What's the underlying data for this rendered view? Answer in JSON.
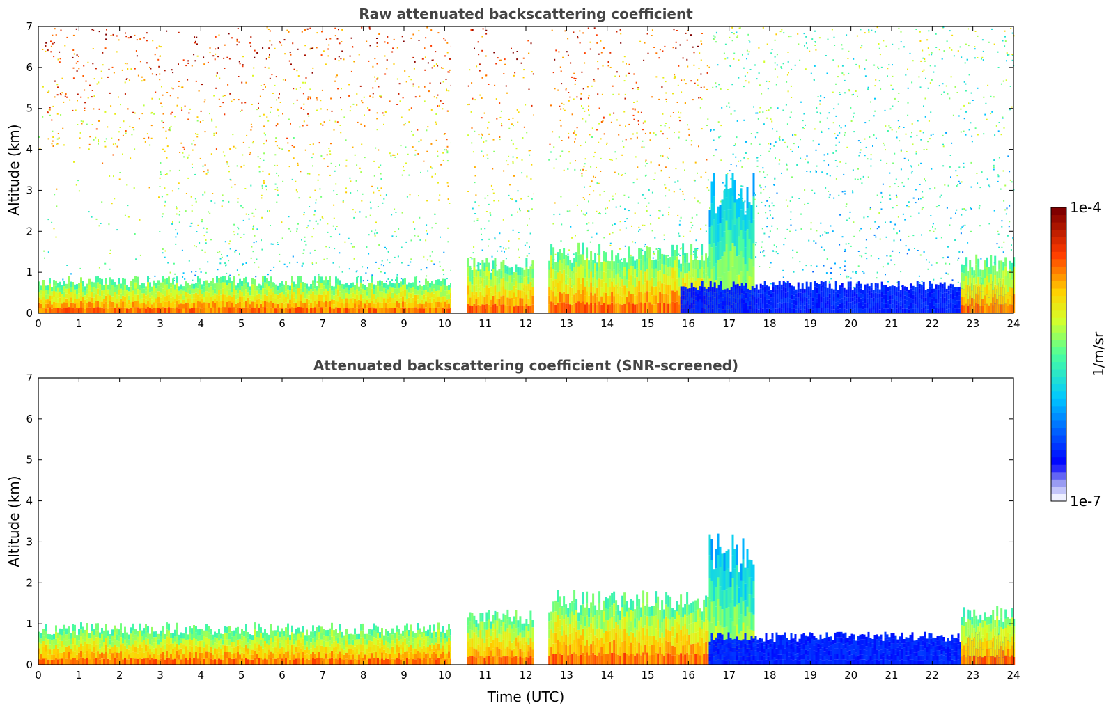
{
  "chart_data": [
    {
      "type": "heatmap",
      "title": "Raw attenuated backscattering coefficient",
      "xlabel": "",
      "ylabel": "Altitude (km)",
      "xlim": [
        0,
        24
      ],
      "ylim": [
        0,
        7
      ],
      "x_ticks": [
        "0",
        "1",
        "2",
        "3",
        "4",
        "5",
        "6",
        "7",
        "8",
        "9",
        "10",
        "11",
        "12",
        "13",
        "14",
        "15",
        "16",
        "17",
        "18",
        "19",
        "20",
        "21",
        "22",
        "23",
        "24"
      ],
      "y_ticks": [
        "0",
        "1",
        "2",
        "3",
        "4",
        "5",
        "6",
        "7"
      ],
      "data_gaps_utc": [
        [
          10.15,
          10.55
        ],
        [
          12.2,
          12.55
        ]
      ],
      "features": [
        {
          "t_start": 0,
          "t_end": 10.15,
          "top_km": 0.8,
          "intensity": "high"
        },
        {
          "t_start": 10.55,
          "t_end": 12.2,
          "top_km": 1.2,
          "intensity": "high"
        },
        {
          "t_start": 12.55,
          "t_end": 16.5,
          "top_km": 1.5,
          "intensity": "high"
        },
        {
          "t_start": 16.5,
          "t_end": 17.6,
          "top_km": 3.0,
          "intensity": "medium"
        },
        {
          "t_start": 15.8,
          "t_end": 24,
          "top_km": 0.7,
          "intensity": "low"
        },
        {
          "t_start": 22.7,
          "t_end": 24,
          "top_km": 1.25,
          "intensity": "high"
        }
      ]
    },
    {
      "type": "heatmap",
      "title": "Attenuated backscattering coefficient (SNR-screened)",
      "xlabel": "Time (UTC)",
      "ylabel": "Altitude (km)",
      "xlim": [
        0,
        24
      ],
      "ylim": [
        0,
        7
      ],
      "x_ticks": [
        "0",
        "1",
        "2",
        "3",
        "4",
        "5",
        "6",
        "7",
        "8",
        "9",
        "10",
        "11",
        "12",
        "13",
        "14",
        "15",
        "16",
        "17",
        "18",
        "19",
        "20",
        "21",
        "22",
        "23",
        "24"
      ],
      "y_ticks": [
        "0",
        "1",
        "2",
        "3",
        "4",
        "5",
        "6",
        "7"
      ],
      "data_gaps_utc": [
        [
          10.15,
          10.55
        ],
        [
          12.2,
          12.55
        ]
      ],
      "features": [
        {
          "t_start": 0,
          "t_end": 10.15,
          "top_km": 0.9,
          "intensity": "high"
        },
        {
          "t_start": 10.55,
          "t_end": 12.2,
          "top_km": 1.2,
          "intensity": "high"
        },
        {
          "t_start": 12.55,
          "t_end": 16.5,
          "top_km": 1.6,
          "intensity": "high"
        },
        {
          "t_start": 16.5,
          "t_end": 17.6,
          "top_km": 2.8,
          "intensity": "medium"
        },
        {
          "t_start": 16.5,
          "t_end": 24,
          "top_km": 0.7,
          "intensity": "low"
        },
        {
          "t_start": 22.7,
          "t_end": 24,
          "top_km": 1.25,
          "intensity": "high"
        }
      ]
    }
  ],
  "colorbar": {
    "max_label": "1e-4",
    "min_label": "1e-7",
    "unit_label": "1/m/sr",
    "colormap": "jet",
    "scale": "log"
  }
}
